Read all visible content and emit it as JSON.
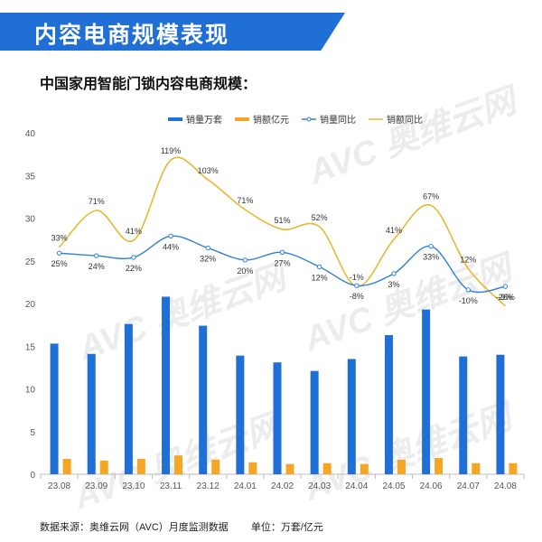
{
  "header": {
    "title": "内容电商规模表现"
  },
  "watermark": {
    "text": "AVC 奥维云网"
  },
  "footer": {
    "source": "数据来源：奥维云网（AVC）月度监测数据",
    "unit": "单位：万套/亿元"
  },
  "colors": {
    "banner": "#1f6fd6",
    "sales_volume": "#1f6fd6",
    "sales_amount": "#f5a623",
    "volume_yoy": "#2e82d6",
    "amount_yoy": "#e8b830"
  },
  "chart_data": {
    "type": "bar",
    "title": "中国家用智能门锁内容电商规模：",
    "categories": [
      "23.08",
      "23.09",
      "23.10",
      "23.11",
      "23.12",
      "24.01",
      "24.02",
      "24.03",
      "24.04",
      "24.05",
      "24.06",
      "24.07",
      "24.08"
    ],
    "ylim": [
      0,
      40
    ],
    "yticks": [
      0,
      5,
      10,
      15,
      20,
      25,
      30,
      35,
      40
    ],
    "grid": false,
    "legend_position": "top",
    "series": [
      {
        "name": "销量万套",
        "type": "bar",
        "values": [
          15.3,
          14.1,
          17.6,
          20.8,
          17.4,
          13.9,
          13.1,
          12.1,
          13.5,
          16.3,
          19.3,
          13.8,
          14.0
        ]
      },
      {
        "name": "销额亿元",
        "type": "bar",
        "values": [
          1.8,
          1.6,
          1.8,
          2.2,
          1.7,
          1.4,
          1.2,
          1.3,
          1.2,
          1.7,
          1.9,
          1.3,
          1.3
        ]
      },
      {
        "name": "销量同比",
        "type": "line",
        "plot_values": [
          25.9,
          25.6,
          25.4,
          27.9,
          26.5,
          25.1,
          26.0,
          24.3,
          22.1,
          23.5,
          26.7,
          21.6,
          22.0
        ],
        "labels": [
          "25%",
          "24%",
          "22%",
          "44%",
          "32%",
          "20%",
          "27%",
          "12%",
          "-8%",
          "3%",
          "33%",
          "-10%",
          "-9%"
        ]
      },
      {
        "name": "销额同比",
        "type": "line",
        "plot_values": [
          26.6,
          30.9,
          27.4,
          36.8,
          34.5,
          31.0,
          28.7,
          29.0,
          22.0,
          27.5,
          31.5,
          24.1,
          19.7
        ],
        "labels": [
          "33%",
          "71%",
          "41%",
          "119%",
          "103%",
          "71%",
          "51%",
          "52%",
          "-1%",
          "41%",
          "67%",
          "12%",
          "-26%"
        ]
      }
    ]
  }
}
